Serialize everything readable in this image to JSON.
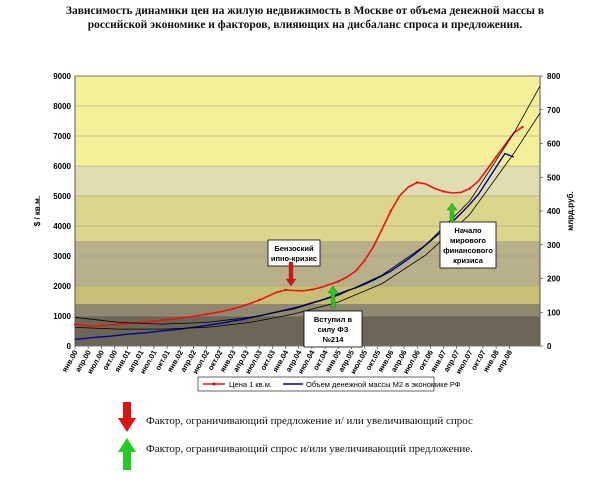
{
  "title": "Зависимость динамики цен на жилую недвижимость в Москве от объема денежной массы в российской экономике и факторов, влияющих на дисбаланс спроса и предложения.",
  "colors": {
    "price_line": "#ee1111",
    "m2_line": "#000099",
    "trend_line": "#000000",
    "band_top": "#f4f09a",
    "band_2": "#e0ddb0",
    "band_3": "#dcd68c",
    "band_4": "#b8b08a",
    "band_5": "#c8bf74",
    "band_6": "#8f8770",
    "band_7": "#6b6656",
    "arrow_red": "#dd1111",
    "arrow_green": "#22cc22"
  },
  "chart_data": {
    "type": "line",
    "title": "",
    "xlabel": "",
    "ylabel": "$ / кв.м.",
    "y2label": "млрд.руб.",
    "ylim": [
      0,
      9000
    ],
    "y2lim": [
      0,
      800
    ],
    "yticks": [
      "0",
      "1000",
      "2000",
      "3000",
      "4000",
      "5000",
      "6000",
      "7000",
      "8000",
      "9000"
    ],
    "y2ticks": [
      "0",
      "100",
      "200",
      "300",
      "400",
      "500",
      "600",
      "700",
      "800"
    ],
    "xticks": [
      "янв.00",
      "апр.00",
      "июл.00",
      "окт.00",
      "янв.01",
      "апр.01",
      "июл.01",
      "окт.01",
      "янв.02",
      "апр.02",
      "июл.02",
      "окт.02",
      "янв.03",
      "апр.03",
      "июл.03",
      "окт.03",
      "янв.04",
      "апр.04",
      "июл.04",
      "окт.04",
      "янв.05",
      "апр.05",
      "июл.05",
      "окт.05",
      "янв.06",
      "апр.06",
      "июл.06",
      "окт.06",
      "янв.07",
      "апр.07",
      "июл.07",
      "окт.07",
      "янв.08",
      "апр.08"
    ],
    "bands_y": [
      [
        0,
        1000
      ],
      [
        1000,
        1400
      ],
      [
        1400,
        2000
      ],
      [
        2000,
        3500
      ],
      [
        3500,
        5000
      ],
      [
        5000,
        6000
      ],
      [
        6000,
        9000
      ]
    ],
    "series": [
      {
        "name": "Цена 1 кв.м.",
        "axis": "left",
        "x": [
          0,
          2,
          4,
          6,
          8,
          10,
          12,
          14,
          16,
          18,
          20,
          22,
          24,
          26,
          28,
          30,
          32,
          34,
          36,
          38,
          40,
          42,
          44,
          46,
          48,
          50,
          52,
          54,
          56,
          58,
          60,
          62,
          64,
          66,
          68,
          70,
          72,
          74,
          76,
          78,
          80,
          82,
          84,
          86,
          88,
          90,
          92,
          94,
          96,
          98,
          100,
          102
        ],
        "values": [
          720,
          690,
          670,
          680,
          700,
          720,
          750,
          780,
          800,
          830,
          860,
          890,
          930,
          970,
          1010,
          1060,
          1110,
          1170,
          1240,
          1320,
          1420,
          1530,
          1660,
          1790,
          1870,
          1850,
          1840,
          1880,
          1950,
          2050,
          2150,
          2300,
          2500,
          2850,
          3300,
          3900,
          4500,
          5000,
          5300,
          5450,
          5400,
          5250,
          5150,
          5100,
          5120,
          5250,
          5500,
          5900,
          6300,
          6700,
          7100,
          7300
        ]
      },
      {
        "name": "Объем денежной массы М2 в экономике РФ",
        "axis": "right",
        "x": [
          0,
          2,
          4,
          6,
          8,
          10,
          12,
          14,
          16,
          18,
          20,
          22,
          24,
          26,
          28,
          30,
          32,
          34,
          36,
          38,
          40,
          42,
          44,
          46,
          48,
          50,
          52,
          54,
          56,
          58,
          60,
          62,
          64,
          66,
          68,
          70,
          72,
          74,
          76,
          78,
          80,
          82,
          84,
          86,
          88,
          90,
          92,
          94,
          96,
          98,
          100
        ],
        "values": [
          20,
          22,
          25,
          27,
          29,
          32,
          35,
          37,
          39,
          42,
          45,
          47,
          50,
          54,
          57,
          61,
          65,
          69,
          74,
          78,
          84,
          89,
          95,
          101,
          107,
          113,
          120,
          128,
          135,
          144,
          154,
          164,
          172,
          183,
          195,
          208,
          222,
          240,
          258,
          278,
          300,
          322,
          345,
          368,
          393,
          420,
          450,
          490,
          530,
          570,
          560
        ]
      },
      {
        "name": "",
        "axis": "right",
        "x": [
          0,
          10,
          20,
          30,
          40,
          50,
          60,
          70,
          80,
          90,
          100,
          106
        ],
        "values": [
          85,
          70,
          65,
          70,
          85,
          110,
          150,
          210,
          300,
          430,
          630,
          770
        ]
      },
      {
        "name": "",
        "axis": "right",
        "x": [
          0,
          10,
          20,
          30,
          40,
          50,
          60,
          70,
          80,
          90,
          100,
          106
        ],
        "values": [
          55,
          50,
          50,
          55,
          70,
          95,
          130,
          185,
          270,
          390,
          570,
          690
        ]
      }
    ],
    "annotations": [
      {
        "text": "Бензоский ипотечный кризис",
        "lines": [
          "Бензоский",
          "ипно-кризис"
        ],
        "x": 51,
        "arrow": "down",
        "color": "red"
      },
      {
        "text": "Вступил в силу ФЗ №214",
        "lines": [
          "Вступил в",
          "силу ФЗ",
          "№214"
        ],
        "x": 58,
        "arrow": "up",
        "color": "green"
      },
      {
        "text": "Начало мирового финансового кризиса",
        "lines": [
          "Начало",
          "мирового",
          "финансового",
          "кризиса"
        ],
        "x": 88,
        "arrow": "up",
        "color": "green"
      }
    ],
    "legend_position": "bottom"
  },
  "bottom_legend": {
    "red_text": "Фактор, ограничивающий предложение и/ или увеличивающий спрос",
    "green_text": "Фактор, ограничивающий спрос и/или увеличивающий предложение."
  }
}
